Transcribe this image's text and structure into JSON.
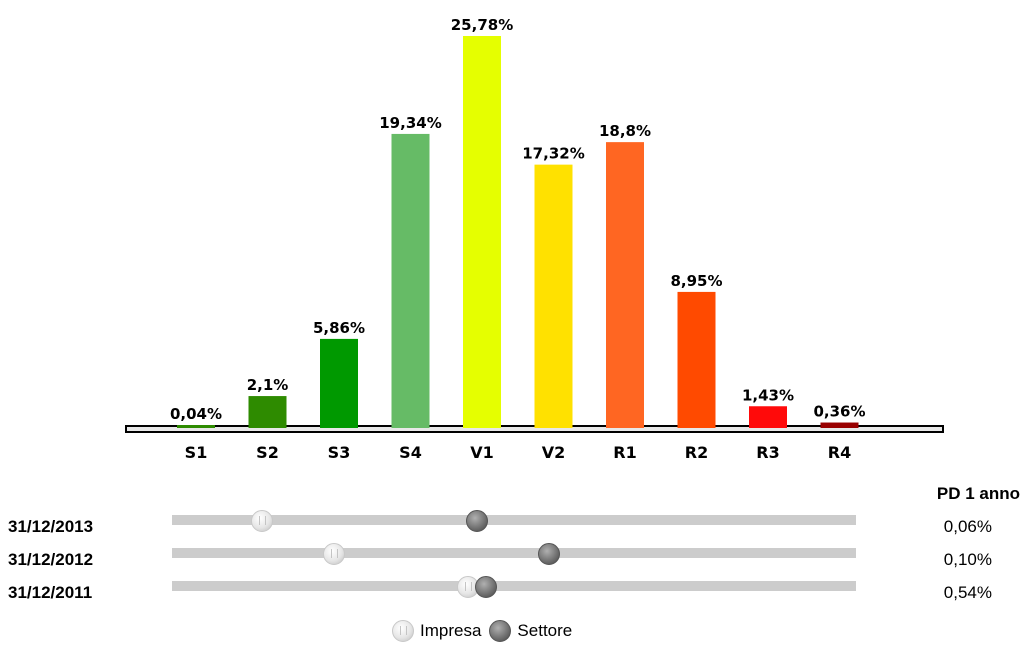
{
  "chart_data": {
    "type": "bar",
    "categories": [
      "S1",
      "S2",
      "S3",
      "S4",
      "V1",
      "V2",
      "R1",
      "R2",
      "R3",
      "R4"
    ],
    "values": [
      0.04,
      2.1,
      5.86,
      19.34,
      25.78,
      17.32,
      18.8,
      8.95,
      1.43,
      0.36
    ],
    "data_labels": [
      "0,04%",
      "2,1%",
      "5,86%",
      "19,34%",
      "25,78%",
      "17,32%",
      "18,8%",
      "8,95%",
      "1,43%",
      "0,36%"
    ],
    "colors": [
      "#2e8b00",
      "#2e8b00",
      "#009900",
      "#66bb66",
      "#e5ff00",
      "#ffe100",
      "#ff6622",
      "#ff4a00",
      "#ff0a0a",
      "#990000"
    ],
    "ylim": [
      0,
      25.78
    ],
    "title": "",
    "xlabel": "",
    "ylabel": ""
  },
  "pd_table": {
    "header": "PD 1 anno",
    "rows": [
      {
        "date": "31/12/2013",
        "pd": "0,06%",
        "impresa": 0.13,
        "settore": 0.445
      },
      {
        "date": "31/12/2012",
        "pd": "0,10%",
        "impresa": 0.235,
        "settore": 0.549
      },
      {
        "date": "31/12/2011",
        "pd": "0,54%",
        "impresa": 0.432,
        "settore": 0.457
      }
    ]
  },
  "legend": {
    "impresa": "Impresa",
    "settore": "Settore"
  }
}
